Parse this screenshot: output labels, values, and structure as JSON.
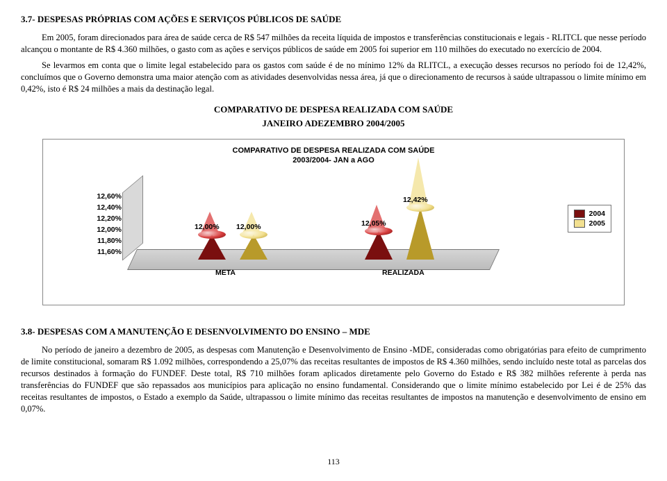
{
  "section37": {
    "title": "3.7- DESPESAS PRÓPRIAS COM AÇÕES E SERVIÇOS PÚBLICOS DE SAÚDE",
    "p1": "Em 2005, foram direcionados para área de saúde cerca de R$ 547 milhões da receita líquida de impostos e transferências constitucionais e legais - RLITCL que nesse período alcançou o montante de R$ 4.360 milhões, o gasto com as ações e serviços públicos de saúde em 2005 foi superior em 110 milhões do executado no exercício de 2004.",
    "p2": "Se levarmos em conta que o limite legal estabelecido para os gastos com saúde é de no mínimo 12% da RLITCL, a execução desses recursos no período foi de 12,42%, concluímos que o Governo demonstra uma maior atenção com as atividades desenvolvidas nessa área, já que o direcionamento de recursos à saúde ultrapassou o limite mínimo em 0,42%, isto é R$ 24 milhões a mais da destinação legal."
  },
  "chart": {
    "title": "COMPARATIVO DE DESPESA REALIZADA COM SAÚDE",
    "subtitle": "JANEIRO ADEZEMBRO 2004/2005",
    "inner_title": "COMPARATIVO DE DESPESA REALIZADA COM SAÚDE",
    "inner_sub": "2003/2004- JAN a AGO",
    "y_ticks": [
      "12,60%",
      "12,40%",
      "12,20%",
      "12,00%",
      "11,80%",
      "11,60%"
    ],
    "ymin": 11.6,
    "ymax": 12.6,
    "categories": [
      "META",
      "REALIZADA"
    ],
    "series": [
      {
        "name": "2004",
        "color_light": "#d94040",
        "color_dark": "#7a0f0f"
      },
      {
        "name": "2005",
        "color_light": "#f2e090",
        "color_dark": "#b89a2a"
      }
    ],
    "points": [
      {
        "cat": 0,
        "series": 0,
        "value": 12.0,
        "label": "12,00%",
        "x": 95
      },
      {
        "cat": 0,
        "series": 1,
        "value": 12.0,
        "label": "12,00%",
        "x": 155
      },
      {
        "cat": 1,
        "series": 0,
        "value": 12.05,
        "label": "12,05%",
        "x": 335
      },
      {
        "cat": 1,
        "series": 1,
        "value": 12.42,
        "label": "12,42%",
        "x": 395
      }
    ],
    "legend": [
      "2004",
      "2005"
    ]
  },
  "section38": {
    "title": "3.8- DESPESAS COM A MANUTENÇÃO E DESENVOLVIMENTO DO ENSINO – MDE",
    "p1": "No período de janeiro a dezembro de 2005, as despesas com Manutenção e Desenvolvimento de Ensino -MDE, consideradas como obrigatórias para efeito de cumprimento de limite constitucional, somaram R$ 1.092 milhões, correspondendo a 25,07% das receitas resultantes de impostos de R$ 4.360 milhões, sendo incluído neste total as parcelas dos recursos destinados à formação do FUNDEF. Deste total, R$ 710 milhões foram aplicados diretamente pelo Governo do Estado e R$ 382 milhões referente à perda nas transferências do FUNDEF que são repassados aos municípios para aplicação no ensino fundamental. Considerando que o limite mínimo estabelecido por Lei é de 25% das receitas resultantes de impostos, o Estado a exemplo da Saúde, ultrapassou o limite mínimo das receitas resultantes de impostos na manutenção e desenvolvimento de ensino em 0,07%."
  },
  "page": "113"
}
